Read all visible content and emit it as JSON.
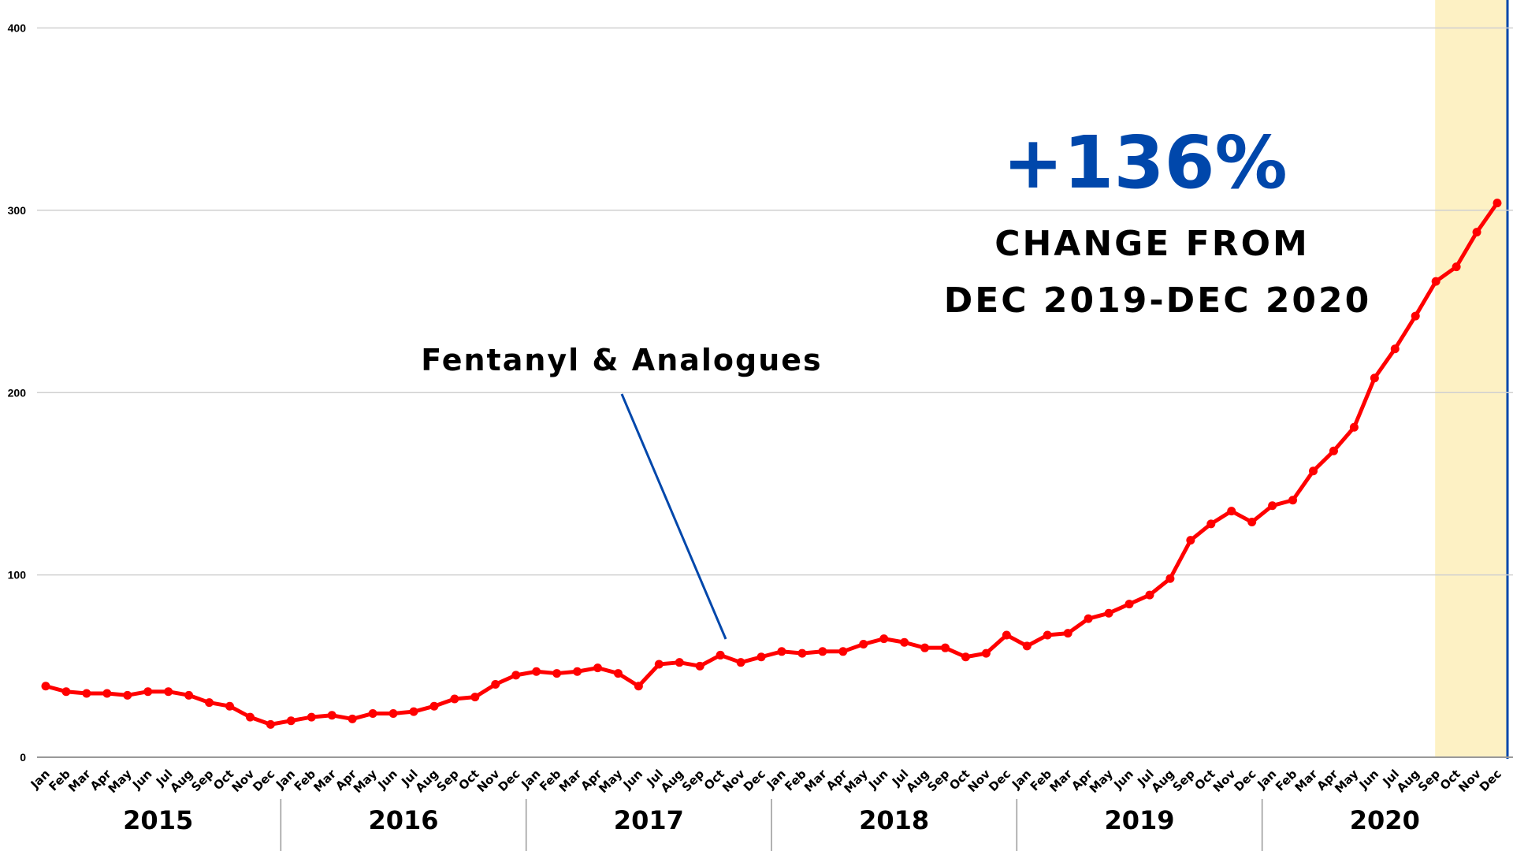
{
  "chart_data": {
    "type": "line",
    "ylim": [
      0,
      400
    ],
    "yticks": [
      0,
      100,
      200,
      300,
      400
    ],
    "grid": true,
    "years": [
      "2015",
      "2016",
      "2017",
      "2018",
      "2019",
      "2020"
    ],
    "months": [
      "Jan",
      "Feb",
      "Mar",
      "Apr",
      "May",
      "Jun",
      "Jul",
      "Aug",
      "Sep",
      "Oct",
      "Nov",
      "Dec"
    ],
    "series": [
      {
        "values": [
          39,
          36,
          35,
          35,
          34,
          36,
          36,
          34,
          30,
          28,
          22,
          18,
          20,
          22,
          23,
          21,
          24,
          24,
          25,
          28,
          32,
          33,
          40,
          45,
          47,
          46,
          47,
          49,
          46,
          39,
          51,
          52,
          50,
          56,
          52,
          55,
          58,
          57,
          58,
          58,
          62,
          65,
          63,
          60,
          60,
          55,
          57,
          67,
          61,
          67,
          68,
          76,
          79,
          84,
          89,
          98,
          119,
          128,
          135,
          129,
          138,
          141,
          157,
          168,
          181,
          208,
          224,
          242,
          261,
          269,
          288,
          304
        ]
      }
    ],
    "line_color": "#ff0000",
    "highlight_color": "#fdf1c4",
    "highlight_range": [
      "Sep 2020",
      "Dec 2020"
    ],
    "annotation": {
      "label": "Fentanyl & Analogues",
      "pointer_color": "#0047ab"
    },
    "callout": {
      "value": "+136%",
      "line1": "CHANGE FROM",
      "line2": "DEC 2019-DEC 2020",
      "color": "#0047ab"
    }
  }
}
